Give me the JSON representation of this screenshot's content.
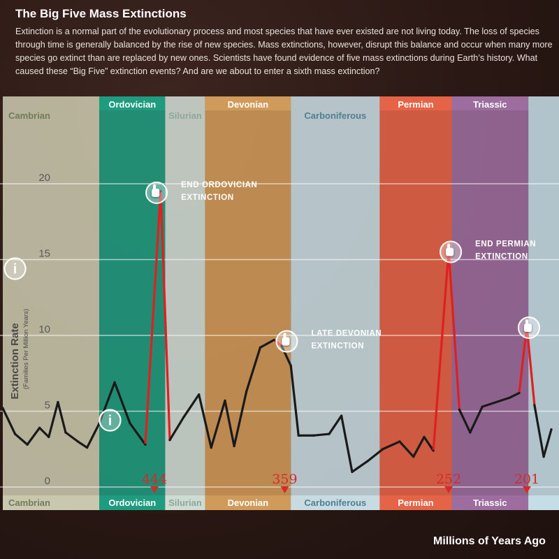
{
  "header": {
    "title": "The Big Five Mass Extinctions",
    "description": "Extinction is a normal part of the evolutionary process and most species that have ever existed are not living today. The loss of species through time is generally balanced by the rise of new species. Mass extinctions, however, disrupt this balance and occur when many more species go extinct than are replaced by new ones. Scientists have found evidence of five mass extinctions during Earth’s history. What caused these “Big Five” extinction events? And are we about to enter a sixth mass extinction?"
  },
  "colors": {
    "background": "#2a1814",
    "line": "#1a1a1a",
    "peak_line": "#e02020",
    "marker_red": "#d42a2a"
  },
  "chart_data": {
    "type": "line",
    "xlabel": "Millions of Years Ago",
    "ylabel": "Extinction Rate",
    "ylabel_sub": "(Families Per Million Years)",
    "xlim": [
      543,
      180
    ],
    "ylim": [
      0,
      20
    ],
    "x_ticks": [
      500,
      450,
      400,
      350,
      300,
      250,
      200
    ],
    "y_ticks": [
      0,
      5,
      10,
      15,
      20
    ],
    "periods": [
      {
        "name": "Cambrian",
        "start": 543,
        "end": 480,
        "color": "#c9c7ad"
      },
      {
        "name": "Ordovician",
        "start": 480,
        "end": 437,
        "color": "#1f9c80"
      },
      {
        "name": "Silurian",
        "start": 437,
        "end": 411,
        "color": "#cfdcd4"
      },
      {
        "name": "Devonian",
        "start": 411,
        "end": 355,
        "color": "#d09a5a"
      },
      {
        "name": "Carboniferous",
        "start": 355,
        "end": 297,
        "color": "#c8dbe0"
      },
      {
        "name": "Permian",
        "start": 297,
        "end": 250,
        "color": "#e56448"
      },
      {
        "name": "Triassic",
        "start": 250,
        "end": 200,
        "color": "#9c6d9e"
      },
      {
        "name": "",
        "start": 200,
        "end": 180,
        "color": "#c5dde6"
      }
    ],
    "series": [
      {
        "values": [
          [
            543,
            5.2
          ],
          [
            535,
            3.5
          ],
          [
            527,
            2.8
          ],
          [
            519,
            3.9
          ],
          [
            513,
            3.3
          ],
          [
            507,
            5.6
          ],
          [
            502,
            3.6
          ],
          [
            494,
            3.0
          ],
          [
            488,
            2.6
          ],
          [
            480,
            4.2
          ],
          [
            470,
            6.9
          ],
          [
            460,
            4.2
          ],
          [
            450,
            2.8
          ],
          [
            440,
            19.5
          ],
          [
            434,
            3.1
          ],
          [
            425,
            4.6
          ],
          [
            415,
            6.1
          ],
          [
            407,
            2.6
          ],
          [
            398,
            5.7
          ],
          [
            392,
            2.7
          ],
          [
            384,
            6.3
          ],
          [
            375,
            9.2
          ],
          [
            366,
            9.7
          ],
          [
            361,
            9.3
          ],
          [
            355,
            8.0
          ],
          [
            350,
            3.4
          ],
          [
            340,
            3.4
          ],
          [
            330,
            3.5
          ],
          [
            322,
            4.7
          ],
          [
            315,
            1.0
          ],
          [
            305,
            1.7
          ],
          [
            295,
            2.5
          ],
          [
            284,
            3.0
          ],
          [
            275,
            2.0
          ],
          [
            268,
            3.3
          ],
          [
            262,
            2.4
          ],
          [
            252,
            15.6
          ],
          [
            245,
            5.1
          ],
          [
            238,
            3.6
          ],
          [
            230,
            5.3
          ],
          [
            212,
            5.9
          ],
          [
            206,
            6.2
          ],
          [
            201,
            10.6
          ],
          [
            196,
            5.4
          ],
          [
            190,
            2.0
          ],
          [
            185,
            3.8
          ]
        ]
      }
    ],
    "extinctions": [
      {
        "year": 444,
        "label_line1": "END ORDOVICIAN",
        "label_line2": "EXTINCTION",
        "peak": 19.5
      },
      {
        "year": 359,
        "label_line1": "LATE DEVONIAN",
        "label_line2": "EXTINCTION",
        "peak": 9.7
      },
      {
        "year": 252,
        "label_line1": "END PERMIAN",
        "label_line2": "EXTINCTION",
        "peak": 15.6
      },
      {
        "year": 201,
        "label_line1": "",
        "label_line2": "",
        "peak": 10.6
      }
    ],
    "info_markers": [
      {
        "year": 535,
        "value": 14.4
      },
      {
        "year": 473,
        "value": 4.4
      }
    ],
    "grid": true
  }
}
